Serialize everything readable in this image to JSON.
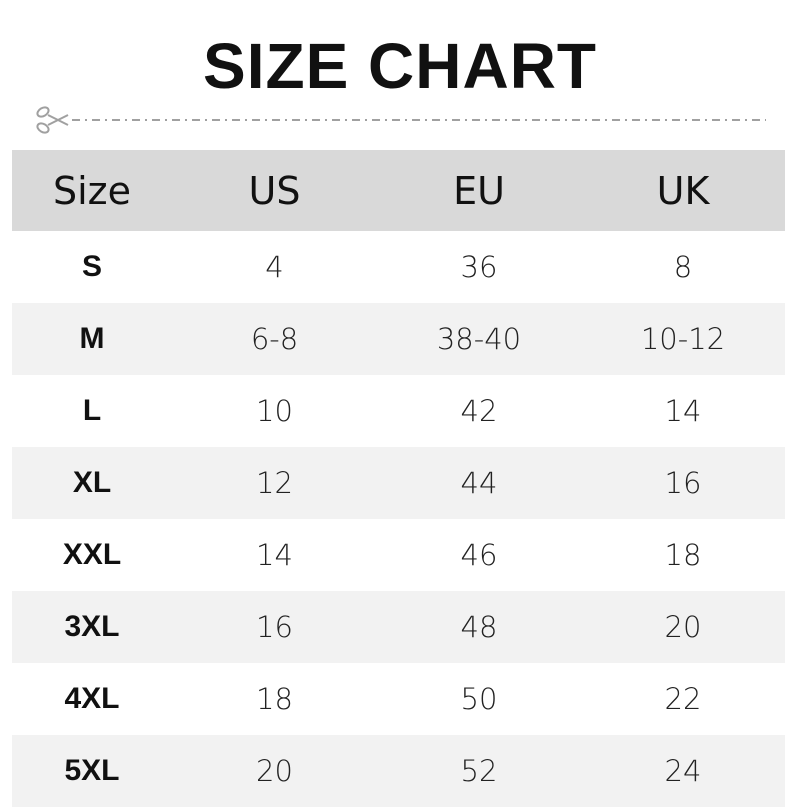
{
  "title": "SIZE CHART",
  "icons": {
    "cut_line": "scissors-icon"
  },
  "colors": {
    "header_bg": "#d9d9d9",
    "alt_row_bg": "#f2f2f2",
    "dash": "#a0a0a0"
  },
  "table": {
    "headers": [
      "Size",
      "US",
      "EU",
      "UK"
    ],
    "rows": [
      [
        "S",
        "4",
        "36",
        "8"
      ],
      [
        "M",
        "6-8",
        "38-40",
        "10-12"
      ],
      [
        "L",
        "10",
        "42",
        "14"
      ],
      [
        "XL",
        "12",
        "44",
        "16"
      ],
      [
        "XXL",
        "14",
        "46",
        "18"
      ],
      [
        "3XL",
        "16",
        "48",
        "20"
      ],
      [
        "4XL",
        "18",
        "50",
        "22"
      ],
      [
        "5XL",
        "20",
        "52",
        "24"
      ]
    ]
  }
}
